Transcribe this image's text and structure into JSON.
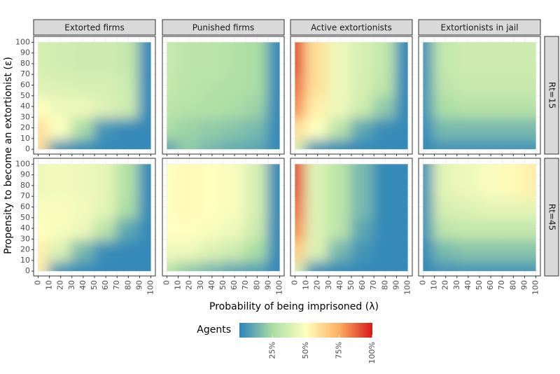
{
  "chart_data": {
    "type": "heatmap",
    "columns": [
      "Extorted firms",
      "Punished firms",
      "Active extortionists",
      "Extortionists in jail"
    ],
    "rows": [
      "Rt=15",
      "Rt=45"
    ],
    "x_label": "Probability of being imprisoned (λ)",
    "y_label": "Propensity to become an extortionist (ε)",
    "x": [
      0,
      20,
      40,
      60,
      80,
      100
    ],
    "y": [
      0,
      20,
      40,
      60,
      80,
      100
    ],
    "xlim": [
      -4,
      104
    ],
    "ylim": [
      -4.5,
      105.5
    ],
    "xticks": [
      0,
      10,
      20,
      30,
      40,
      50,
      60,
      70,
      80,
      90,
      100
    ],
    "yticks": [
      0,
      10,
      20,
      30,
      40,
      50,
      60,
      70,
      80,
      90,
      100
    ],
    "legend_title": "Agents",
    "clim": [
      0,
      100
    ],
    "colors": [
      "#2b83ba",
      "#abdda4",
      "#ffffbf",
      "#fdae61",
      "#d7191c"
    ],
    "cticks": [
      {
        "value": 25,
        "label": "25%"
      },
      {
        "value": 50,
        "label": "50%"
      },
      {
        "value": 75,
        "label": "75%"
      },
      {
        "value": 100,
        "label": "100%"
      }
    ],
    "z": [
      [
        [
          [
            60,
            5,
            2,
            2,
            2,
            2
          ],
          [
            60,
            50,
            25,
            5,
            2,
            2
          ],
          [
            50,
            45,
            45,
            40,
            35,
            2
          ],
          [
            40,
            40,
            38,
            38,
            35,
            2
          ],
          [
            38,
            36,
            35,
            35,
            33,
            2
          ],
          [
            38,
            36,
            35,
            35,
            33,
            2
          ]
        ],
        [
          [
            10,
            20,
            15,
            12,
            10,
            2
          ],
          [
            25,
            22,
            20,
            18,
            15,
            2
          ],
          [
            30,
            28,
            27,
            25,
            22,
            2
          ],
          [
            32,
            30,
            28,
            27,
            25,
            2
          ],
          [
            33,
            30,
            30,
            28,
            25,
            2
          ],
          [
            33,
            30,
            30,
            28,
            25,
            2
          ]
        ],
        [
          [
            40,
            5,
            2,
            2,
            2,
            2
          ],
          [
            60,
            50,
            30,
            10,
            3,
            2
          ],
          [
            80,
            55,
            45,
            35,
            20,
            2
          ],
          [
            85,
            60,
            45,
            38,
            30,
            2
          ],
          [
            90,
            60,
            45,
            38,
            32,
            2
          ],
          [
            90,
            60,
            45,
            38,
            32,
            2
          ]
        ],
        [
          [
            2,
            5,
            5,
            5,
            5,
            5
          ],
          [
            3,
            15,
            15,
            15,
            15,
            15
          ],
          [
            5,
            25,
            28,
            28,
            28,
            28
          ],
          [
            5,
            30,
            33,
            33,
            33,
            33
          ],
          [
            5,
            32,
            35,
            35,
            35,
            35
          ],
          [
            5,
            32,
            35,
            35,
            35,
            35
          ]
        ]
      ],
      [
        [
          [
            55,
            5,
            2,
            2,
            2,
            2
          ],
          [
            55,
            40,
            15,
            3,
            2,
            2
          ],
          [
            50,
            48,
            45,
            30,
            10,
            2
          ],
          [
            48,
            48,
            46,
            42,
            25,
            2
          ],
          [
            45,
            46,
            45,
            42,
            28,
            2
          ],
          [
            45,
            46,
            45,
            42,
            28,
            2
          ]
        ],
        [
          [
            30,
            20,
            15,
            10,
            8,
            2
          ],
          [
            45,
            45,
            40,
            35,
            25,
            2
          ],
          [
            50,
            50,
            48,
            45,
            35,
            2
          ],
          [
            50,
            52,
            50,
            48,
            38,
            2
          ],
          [
            50,
            52,
            50,
            48,
            38,
            2
          ],
          [
            50,
            52,
            50,
            48,
            38,
            2
          ]
        ],
        [
          [
            40,
            3,
            2,
            2,
            2,
            2
          ],
          [
            65,
            40,
            15,
            5,
            2,
            2
          ],
          [
            80,
            40,
            30,
            10,
            2,
            2
          ],
          [
            85,
            40,
            30,
            15,
            2,
            2
          ],
          [
            90,
            40,
            30,
            15,
            2,
            2
          ],
          [
            90,
            40,
            30,
            15,
            2,
            2
          ]
        ],
        [
          [
            2,
            5,
            5,
            5,
            5,
            5
          ],
          [
            3,
            15,
            18,
            18,
            18,
            18
          ],
          [
            5,
            30,
            32,
            32,
            32,
            32
          ],
          [
            5,
            38,
            40,
            42,
            42,
            42
          ],
          [
            5,
            42,
            45,
            48,
            52,
            55
          ],
          [
            5,
            42,
            45,
            48,
            52,
            55
          ]
        ]
      ]
    ]
  }
}
